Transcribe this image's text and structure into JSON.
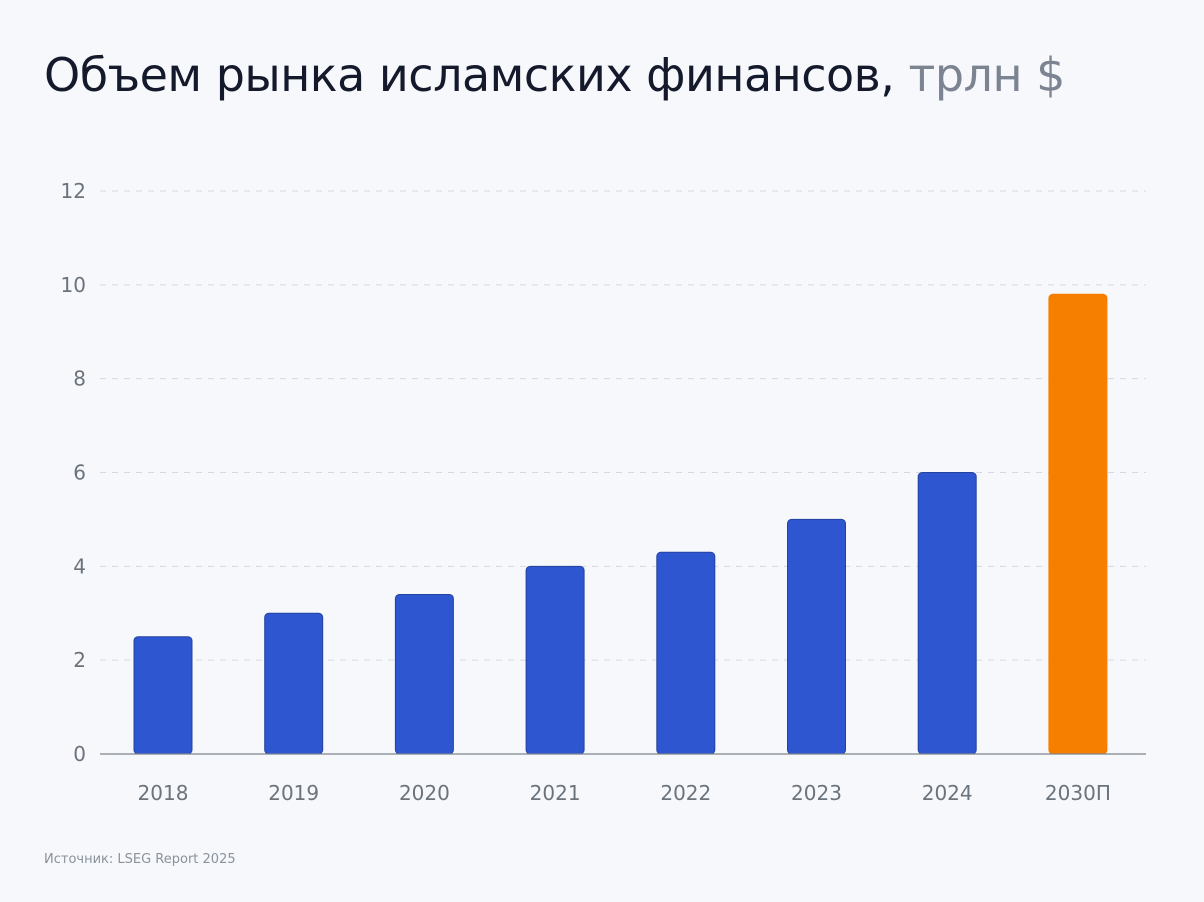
{
  "title": "Объем рынка исламских финансов,",
  "title_unit": "трлн $",
  "source": "Источник: LSEG Report 2025",
  "colors": {
    "background": "#f7f8fb",
    "bar_actual": "#2e56d0",
    "bar_forecast": "#f77f00",
    "grid": "#d5d9df",
    "axis": "#7d848c",
    "tick_text": "#6b737d"
  },
  "chart_data": {
    "type": "bar",
    "title": "Объем рынка исламских финансов, трлн $",
    "xlabel": "",
    "ylabel": "",
    "categories": [
      "2018",
      "2019",
      "2020",
      "2021",
      "2022",
      "2023",
      "2024",
      "2030П"
    ],
    "values": [
      2.5,
      3.0,
      3.4,
      4.0,
      4.3,
      5.0,
      6.0,
      9.8
    ],
    "forecast": [
      false,
      false,
      false,
      false,
      false,
      false,
      false,
      true
    ],
    "ylim": [
      0,
      12
    ],
    "yticks": [
      0,
      2,
      4,
      6,
      8,
      10,
      12
    ],
    "grid": true,
    "legend": "none"
  }
}
